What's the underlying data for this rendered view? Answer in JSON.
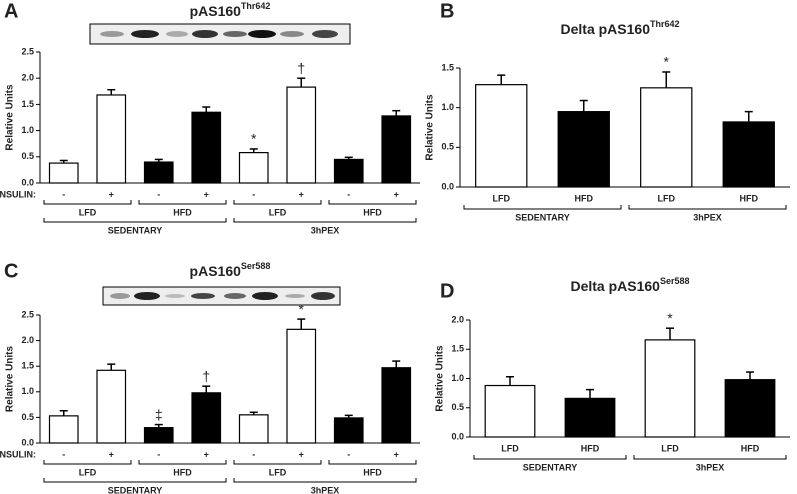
{
  "chart_data": [
    {
      "type": "bar",
      "panel": "A",
      "title": "pAS160",
      "title_sup": "Thr642",
      "ylabel": "Relative Units",
      "ylim": [
        0,
        2.5
      ],
      "yticks": [
        {
          "value": 0,
          "label": "0.0"
        },
        {
          "value": 0.5,
          "label": "0.5"
        },
        {
          "value": 1,
          "label": "1.0"
        },
        {
          "value": 1.5,
          "label": "1.5"
        },
        {
          "value": 2,
          "label": "2.0"
        },
        {
          "value": 2.5,
          "label": "2.5"
        }
      ],
      "insulin_label": "INSULIN:",
      "categories": [
        "-",
        "+",
        "-",
        "+",
        "-",
        "+",
        "-",
        "+"
      ],
      "diet_labels": [
        "LFD",
        "HFD",
        "LFD",
        "HFD"
      ],
      "group_labels": [
        "SEDENTARY",
        "3hPEX"
      ],
      "values": [
        0.38,
        1.68,
        0.4,
        1.35,
        0.58,
        1.83,
        0.45,
        1.28
      ],
      "errors": [
        0.05,
        0.1,
        0.05,
        0.1,
        0.07,
        0.17,
        0.04,
        0.1
      ],
      "colors": [
        "#ffffff",
        "#ffffff",
        "#000000",
        "#000000",
        "#ffffff",
        "#ffffff",
        "#000000",
        "#000000"
      ],
      "annotations": [
        null,
        null,
        null,
        null,
        "*",
        "†",
        null,
        null
      ]
    },
    {
      "type": "bar",
      "panel": "B",
      "title": "Delta pAS160",
      "title_sup": "Thr642",
      "ylabel": "Relative Units",
      "ylim": [
        0,
        1.5
      ],
      "yticks": [
        {
          "value": 0,
          "label": "0.0"
        },
        {
          "value": 0.5,
          "label": "0.5"
        },
        {
          "value": 1,
          "label": "1.0"
        },
        {
          "value": 1.5,
          "label": "1.5"
        }
      ],
      "categories": [
        "LFD",
        "HFD",
        "LFD",
        "HFD"
      ],
      "group_labels": [
        "SEDENTARY",
        "3hPEX"
      ],
      "values": [
        1.29,
        0.95,
        1.25,
        0.82
      ],
      "errors": [
        0.12,
        0.14,
        0.2,
        0.13
      ],
      "colors": [
        "#ffffff",
        "#000000",
        "#ffffff",
        "#000000"
      ],
      "annotations": [
        null,
        null,
        "*",
        null
      ]
    },
    {
      "type": "bar",
      "panel": "C",
      "title": "pAS160",
      "title_sup": "Ser588",
      "ylabel": "Relative Units",
      "ylim": [
        0,
        2.5
      ],
      "yticks": [
        {
          "value": 0,
          "label": "0.0"
        },
        {
          "value": 0.5,
          "label": "0.5"
        },
        {
          "value": 1,
          "label": "1.0"
        },
        {
          "value": 1.5,
          "label": "1.5"
        },
        {
          "value": 2,
          "label": "2.0"
        },
        {
          "value": 2.5,
          "label": "2.5"
        }
      ],
      "insulin_label": "INSULIN:",
      "categories": [
        "-",
        "+",
        "-",
        "+",
        "-",
        "+",
        "-",
        "+"
      ],
      "diet_labels": [
        "LFD",
        "HFD",
        "LFD",
        "HFD"
      ],
      "group_labels": [
        "SEDENTARY",
        "3hPEX"
      ],
      "values": [
        0.53,
        1.42,
        0.3,
        0.98,
        0.55,
        2.22,
        0.49,
        1.47
      ],
      "errors": [
        0.1,
        0.12,
        0.06,
        0.13,
        0.05,
        0.2,
        0.05,
        0.13
      ],
      "colors": [
        "#ffffff",
        "#ffffff",
        "#000000",
        "#000000",
        "#ffffff",
        "#ffffff",
        "#000000",
        "#000000"
      ],
      "annotations": [
        null,
        null,
        "‡",
        "†",
        null,
        "*",
        null,
        null
      ]
    },
    {
      "type": "bar",
      "panel": "D",
      "title": "Delta pAS160",
      "title_sup": "Ser588",
      "ylabel": "Relative Units",
      "ylim": [
        0,
        2
      ],
      "yticks": [
        {
          "value": 0,
          "label": "0.0"
        },
        {
          "value": 0.5,
          "label": "0.5"
        },
        {
          "value": 1,
          "label": "1.0"
        },
        {
          "value": 1.5,
          "label": "1.5"
        },
        {
          "value": 2,
          "label": "2.0"
        }
      ],
      "categories": [
        "LFD",
        "HFD",
        "LFD",
        "HFD"
      ],
      "group_labels": [
        "SEDENTARY",
        "3hPEX"
      ],
      "values": [
        0.88,
        0.66,
        1.66,
        0.98
      ],
      "errors": [
        0.15,
        0.15,
        0.2,
        0.13
      ],
      "colors": [
        "#ffffff",
        "#000000",
        "#ffffff",
        "#000000"
      ],
      "annotations": [
        null,
        null,
        "*",
        null
      ]
    }
  ]
}
